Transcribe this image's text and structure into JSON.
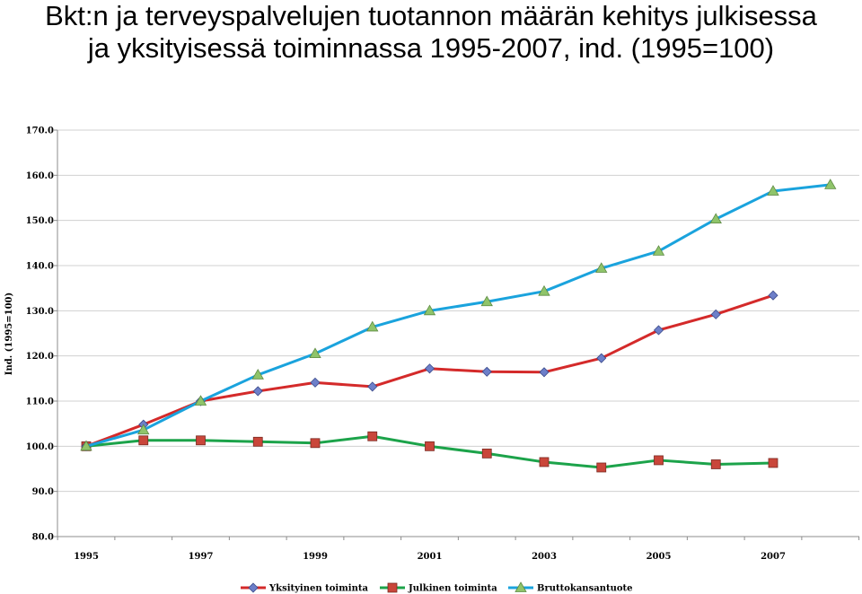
{
  "chart_data": {
    "type": "line",
    "title_line1": "Bkt:n ja terveyspalvelujen tuotannon määrän kehitys julkisessa",
    "title_line2": "ja yksityisessä toiminnassa 1995-2007, ind. (1995=100)",
    "xlabel": "",
    "ylabel": "Ind. (1995=100)",
    "ylim": [
      80,
      170
    ],
    "yticks": [
      80,
      90,
      100,
      110,
      120,
      130,
      140,
      150,
      160,
      170
    ],
    "ytick_labels": [
      "80.0",
      "90.0",
      "100.0",
      "110.0",
      "120.0",
      "130.0",
      "140.0",
      "150.0",
      "160.0",
      "170.0"
    ],
    "x": [
      1995,
      1996,
      1997,
      1998,
      1999,
      2000,
      2001,
      2002,
      2003,
      2004,
      2005,
      2006,
      2007,
      2008
    ],
    "xticks": [
      1995,
      1997,
      1999,
      2001,
      2003,
      2005,
      2007
    ],
    "xtick_labels": [
      "1995",
      "1997",
      "1999",
      "2001",
      "2003",
      "2005",
      "2007"
    ],
    "grid": "horizontal",
    "legend_position": "bottom",
    "series": [
      {
        "name": "Yksityinen toiminta",
        "color": "#d42a2a",
        "marker_color": "#6d7fc9",
        "marker": "diamond",
        "values": [
          100.0,
          104.8,
          110.0,
          112.2,
          114.1,
          113.2,
          117.2,
          116.5,
          116.4,
          119.5,
          125.7,
          129.2,
          133.4,
          null
        ]
      },
      {
        "name": "Julkinen toiminta",
        "color": "#1ca34a",
        "marker_color": "#c9463a",
        "marker": "square",
        "values": [
          100.0,
          101.3,
          101.3,
          101.0,
          100.7,
          102.2,
          100.0,
          98.4,
          96.5,
          95.3,
          96.9,
          96.0,
          96.3,
          null
        ]
      },
      {
        "name": "Bruttokansantuote",
        "color": "#1aa3dd",
        "marker_color": "#8fc46a",
        "marker": "triangle",
        "values": [
          100.0,
          103.6,
          110.0,
          115.8,
          120.5,
          126.4,
          130.0,
          132.0,
          134.3,
          139.4,
          143.2,
          150.3,
          156.5,
          157.9
        ]
      }
    ]
  }
}
